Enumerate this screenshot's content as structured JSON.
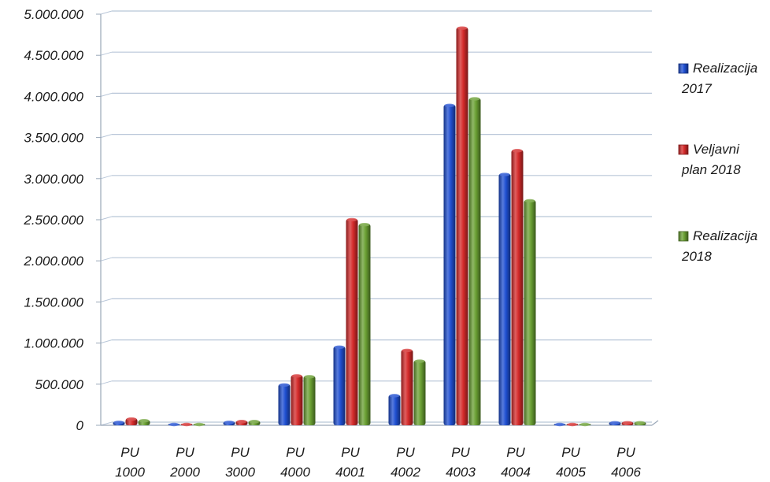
{
  "chart_data": {
    "type": "bar",
    "categories": [
      [
        "PU",
        "1000"
      ],
      [
        "PU",
        "2000"
      ],
      [
        "PU",
        "3000"
      ],
      [
        "PU",
        "4000"
      ],
      [
        "PU",
        "4001"
      ],
      [
        "PU",
        "4002"
      ],
      [
        "PU",
        "4003"
      ],
      [
        "PU",
        "4004"
      ],
      [
        "PU",
        "4005"
      ],
      [
        "PU",
        "4006"
      ]
    ],
    "series": [
      {
        "name": [
          "Realizacija",
          "2017"
        ],
        "color": "#1f4fd1",
        "values": [
          45000,
          10000,
          45000,
          500000,
          960000,
          370000,
          3900000,
          3060000,
          5000,
          40000
        ]
      },
      {
        "name": [
          "Veljavni",
          "plan 2018"
        ],
        "color": "#d42a2a",
        "values": [
          85000,
          10000,
          55000,
          610000,
          2510000,
          920000,
          4840000,
          3350000,
          5000,
          40000
        ]
      },
      {
        "name": [
          "Realizacija",
          "2018"
        ],
        "color": "#6aa033",
        "values": [
          65000,
          10000,
          55000,
          600000,
          2450000,
          790000,
          3980000,
          2740000,
          5000,
          40000
        ]
      }
    ],
    "yticks": [
      "0",
      "500.000",
      "1.000.000",
      "1.500.000",
      "2.000.000",
      "2.500.000",
      "3.000.000",
      "3.500.000",
      "4.000.000",
      "4.500.000",
      "5.000.000"
    ],
    "ylim": [
      0,
      5000000
    ],
    "grid": true,
    "legend_position": "right",
    "title": "",
    "xlabel": "",
    "ylabel": ""
  }
}
